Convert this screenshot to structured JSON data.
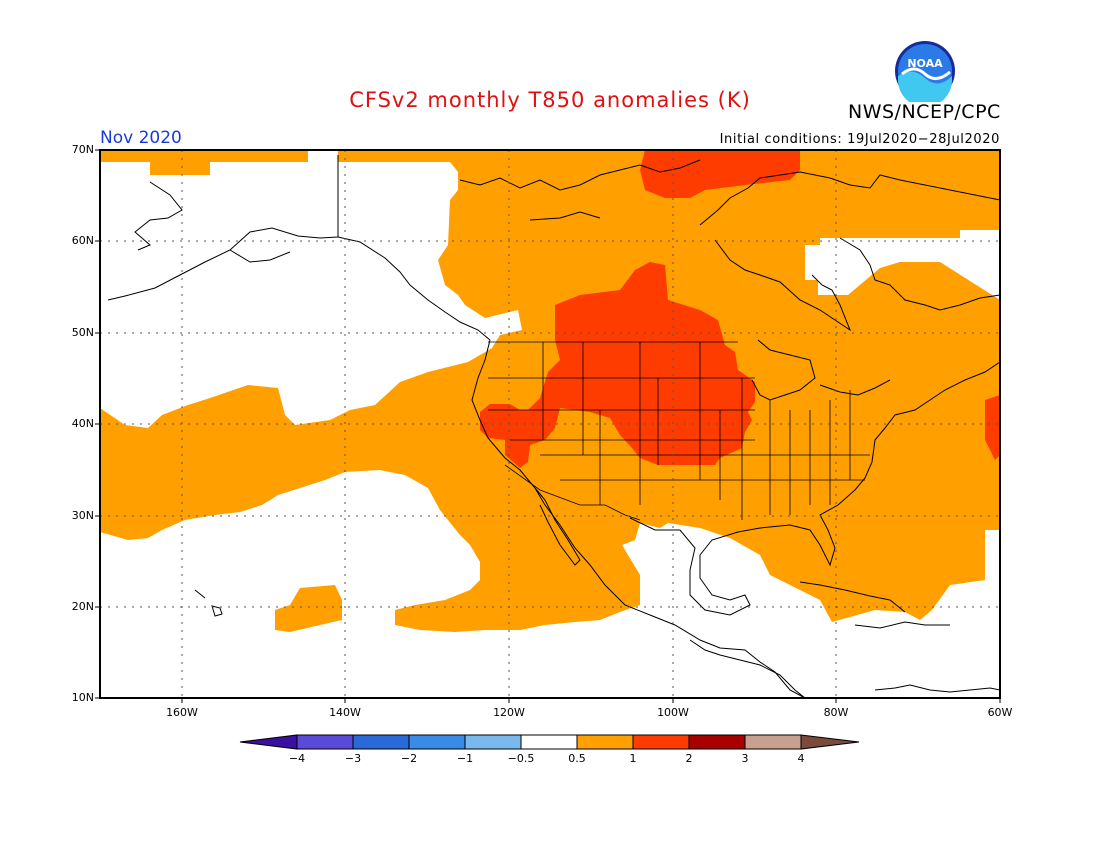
{
  "title": "CFSv2 monthly T850 anomalies (K)",
  "agency": "NWS/NCEP/CPC",
  "logo_text": "NOAA",
  "month": "Nov 2020",
  "initial_conditions": "Initial conditions: 19Jul2020−28Jul2020",
  "lat_labels": [
    "70N",
    "60N",
    "50N",
    "40N",
    "30N",
    "20N",
    "10N"
  ],
  "lon_labels": [
    "160W",
    "140W",
    "120W",
    "100W",
    "80W",
    "60W"
  ],
  "colorbar": {
    "labels": [
      "−4",
      "−3",
      "−2",
      "−1",
      "−0.5",
      "0.5",
      "1",
      "2",
      "3",
      "4"
    ],
    "colors": [
      "#3a10a0",
      "#5a4ad8",
      "#2a6ad8",
      "#3a8ae8",
      "#7ab8f0",
      "#ffffff",
      "#ffa000",
      "#ff3c00",
      "#a80000",
      "#c8a090",
      "#7a4a3a"
    ]
  },
  "colors": {
    "anomaly_0_5_to_1": "#ffa000",
    "anomaly_1_to_2": "#ff3c00",
    "title": "#e01010",
    "month": "#1a3ad8"
  }
}
